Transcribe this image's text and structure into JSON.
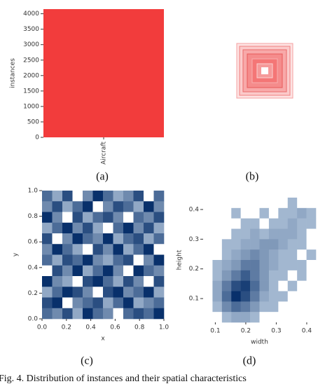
{
  "chart_data": [
    {
      "type": "bar",
      "categories": [
        "Aircraft"
      ],
      "values": [
        4150
      ],
      "color": "#f23c3c",
      "ylabel": "instances",
      "ylim": [
        0,
        4150
      ],
      "yticks": [
        0,
        500,
        1000,
        1500,
        2000,
        2500,
        3000,
        3500,
        4000
      ]
    },
    {
      "type": "heatmap",
      "colormap": "Blues",
      "xlabel": "x",
      "ylabel": "y",
      "xlim": [
        0,
        1
      ],
      "ylim": [
        0,
        1
      ],
      "xticks": [
        {
          "value": 0,
          "label": "0.0"
        },
        0.2,
        0.4,
        0.6,
        0.8,
        {
          "value": 1,
          "label": "1.0"
        }
      ],
      "yticks": [
        {
          "value": 0,
          "label": "0.0"
        },
        0.2,
        0.4,
        0.6,
        0.8,
        {
          "value": 1,
          "label": "1.0"
        }
      ],
      "values": [
        [
          3,
          1,
          4,
          0,
          2,
          5,
          3,
          1,
          2,
          4,
          0,
          3
        ],
        [
          2,
          4,
          1,
          3,
          5,
          0,
          2,
          4,
          3,
          1,
          5,
          2
        ],
        [
          5,
          2,
          0,
          4,
          1,
          3,
          4,
          2,
          0,
          3,
          2,
          4
        ],
        [
          1,
          3,
          5,
          2,
          4,
          1,
          0,
          3,
          5,
          2,
          4,
          1
        ],
        [
          4,
          0,
          2,
          5,
          3,
          2,
          5,
          1,
          3,
          4,
          1,
          3
        ],
        [
          2,
          5,
          3,
          1,
          0,
          4,
          2,
          5,
          1,
          3,
          5,
          0
        ],
        [
          3,
          1,
          4,
          3,
          5,
          2,
          1,
          3,
          4,
          0,
          2,
          5
        ],
        [
          0,
          4,
          2,
          5,
          1,
          3,
          5,
          2,
          0,
          5,
          3,
          2
        ],
        [
          5,
          2,
          1,
          0,
          4,
          5,
          3,
          1,
          4,
          2,
          0,
          4
        ],
        [
          1,
          3,
          5,
          4,
          2,
          0,
          4,
          5,
          2,
          3,
          5,
          1
        ],
        [
          4,
          5,
          0,
          2,
          3,
          4,
          1,
          3,
          5,
          1,
          2,
          3
        ],
        [
          3,
          2,
          4,
          1,
          5,
          3,
          2,
          0,
          3,
          4,
          3,
          5
        ]
      ]
    },
    {
      "type": "heatmap",
      "colormap": "Blues",
      "xlabel": "width",
      "ylabel": "height",
      "xlim": [
        0.06,
        0.43
      ],
      "ylim": [
        0.02,
        0.44
      ],
      "xticks": [
        0.1,
        0.2,
        0.3,
        0.4
      ],
      "yticks": [
        0.1,
        0.2,
        0.3,
        0.4
      ],
      "values": [
        [
          0,
          0,
          0,
          0,
          0,
          0,
          0,
          0,
          0,
          1,
          0,
          0
        ],
        [
          0,
          0,
          0,
          1,
          0,
          0,
          1,
          0,
          1,
          1,
          2,
          1
        ],
        [
          0,
          0,
          0,
          0,
          1,
          1,
          0,
          1,
          1,
          2,
          1,
          1
        ],
        [
          0,
          0,
          0,
          1,
          1,
          2,
          1,
          2,
          2,
          2,
          1,
          0
        ],
        [
          0,
          0,
          1,
          1,
          2,
          2,
          3,
          3,
          2,
          1,
          1,
          0
        ],
        [
          0,
          0,
          1,
          2,
          3,
          4,
          3,
          2,
          1,
          1,
          0,
          1
        ],
        [
          0,
          1,
          2,
          3,
          5,
          5,
          3,
          2,
          1,
          1,
          1,
          0
        ],
        [
          0,
          1,
          3,
          5,
          7,
          5,
          3,
          1,
          1,
          0,
          1,
          0
        ],
        [
          0,
          2,
          5,
          8,
          9,
          6,
          3,
          1,
          0,
          1,
          0,
          0
        ],
        [
          0,
          2,
          6,
          10,
          8,
          5,
          2,
          1,
          1,
          0,
          0,
          0
        ],
        [
          0,
          1,
          4,
          6,
          5,
          3,
          1,
          1,
          0,
          0,
          0,
          0
        ],
        [
          0,
          0,
          1,
          2,
          2,
          1,
          0,
          0,
          0,
          0,
          0,
          0
        ]
      ]
    }
  ],
  "panel_labels": [
    "(a)",
    "(b)",
    "(c)",
    "(d)"
  ],
  "caption": "Fig. 4.   Distribution of instances and their spatial characteristics"
}
